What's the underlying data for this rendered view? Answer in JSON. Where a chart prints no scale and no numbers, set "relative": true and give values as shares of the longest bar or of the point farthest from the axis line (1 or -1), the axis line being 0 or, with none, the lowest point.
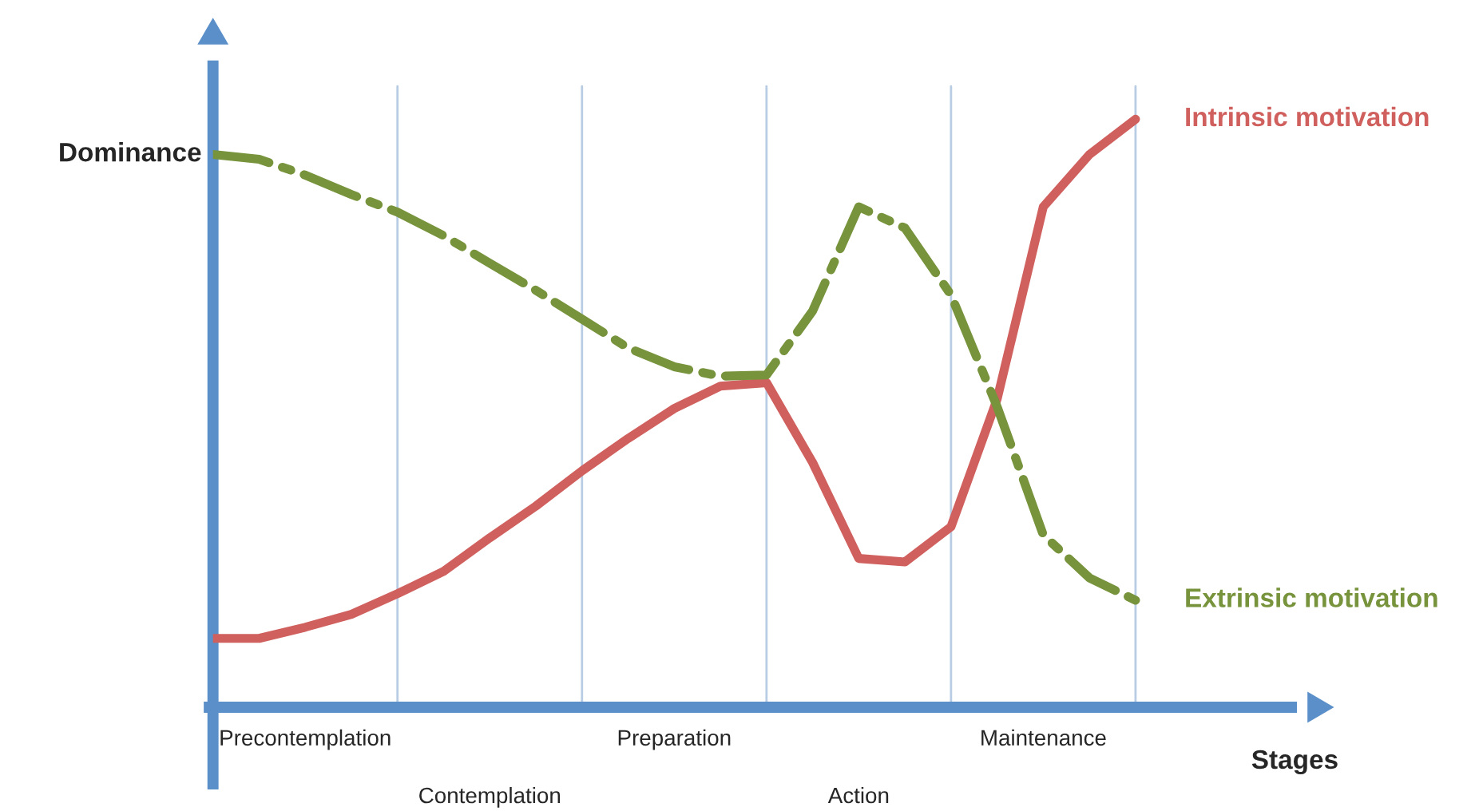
{
  "chart_data": {
    "type": "line",
    "relative": true,
    "xlabel": "Stages",
    "ylabel": "Dominance",
    "categories": [
      null,
      null,
      "Precontemplation",
      null,
      null,
      null,
      "Contemplation",
      null,
      null,
      null,
      "Preparation",
      null,
      null,
      null,
      "Action",
      null,
      null,
      null,
      "Maintenance",
      null,
      null
    ],
    "grid": "x",
    "legend": false,
    "marker": "none",
    "series": [
      {
        "name": "Intrinsic motivation",
        "color": "#d0605e",
        "line_style": "solid",
        "values": [
          0.117,
          0.117,
          0.136,
          0.158,
          0.193,
          0.231,
          0.288,
          0.342,
          0.402,
          0.457,
          0.508,
          0.546,
          0.552,
          0.416,
          0.253,
          0.247,
          0.307,
          0.524,
          0.851,
          0.94,
          1.0
        ]
      },
      {
        "name": "Extrinsic motivation",
        "color": "#77933c",
        "line_style": "dashdot",
        "values": [
          0.94,
          0.932,
          0.905,
          0.872,
          0.842,
          0.802,
          0.755,
          0.709,
          0.66,
          0.611,
          0.579,
          0.563,
          0.565,
          0.674,
          0.851,
          0.815,
          0.701,
          0.511,
          0.293,
          0.22,
          0.182
        ]
      }
    ]
  }
}
